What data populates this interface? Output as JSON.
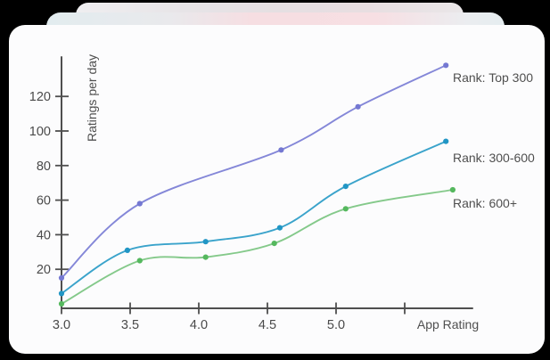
{
  "page": {
    "background_color": "#000000",
    "card_color": "#fcfcfd"
  },
  "chart_data": {
    "type": "line",
    "title": "",
    "xlabel": "App Rating",
    "ylabel": "Ratings per day",
    "x_range": [
      3.0,
      6.0
    ],
    "y_range": [
      0,
      145
    ],
    "grid": false,
    "legend_position": "right of line ends",
    "axis_color": "#4f4f4f",
    "label_color": "#4a4a4a",
    "x_ticks": [
      {
        "value": 3.0,
        "label": "3.0"
      },
      {
        "value": 3.5,
        "label": "3.5"
      },
      {
        "value": 4.0,
        "label": "4.0"
      },
      {
        "value": 4.5,
        "label": "4.5"
      },
      {
        "value": 5.0,
        "label": "5.0"
      },
      {
        "value": 5.5,
        "label": ""
      }
    ],
    "y_ticks": [
      {
        "value": 20,
        "label": "20"
      },
      {
        "value": 40,
        "label": "40"
      },
      {
        "value": 60,
        "label": "60"
      },
      {
        "value": 80,
        "label": "80"
      },
      {
        "value": 100,
        "label": "100"
      },
      {
        "value": 120,
        "label": "120"
      }
    ],
    "series": [
      {
        "label": "Rank: Top 300",
        "line_color": "#8487d8",
        "dot_color": "#7478d2",
        "points": [
          {
            "x": 3.0,
            "y": 15
          },
          {
            "x": 3.57,
            "y": 58
          },
          {
            "x": 4.6,
            "y": 89
          },
          {
            "x": 5.16,
            "y": 114
          },
          {
            "x": 5.8,
            "y": 138
          }
        ]
      },
      {
        "label": "Rank: 300-600",
        "line_color": "#3aa3cb",
        "dot_color": "#2196c5",
        "points": [
          {
            "x": 3.0,
            "y": 6
          },
          {
            "x": 3.48,
            "y": 31
          },
          {
            "x": 4.05,
            "y": 36
          },
          {
            "x": 4.59,
            "y": 44
          },
          {
            "x": 5.07,
            "y": 68
          },
          {
            "x": 5.8,
            "y": 94
          }
        ]
      },
      {
        "label": "Rank: 600+",
        "line_color": "#84c98a",
        "dot_color": "#55b85e",
        "points": [
          {
            "x": 3.0,
            "y": 0
          },
          {
            "x": 3.57,
            "y": 25
          },
          {
            "x": 4.05,
            "y": 27
          },
          {
            "x": 4.55,
            "y": 35
          },
          {
            "x": 5.07,
            "y": 55
          },
          {
            "x": 5.85,
            "y": 66
          }
        ]
      }
    ]
  }
}
